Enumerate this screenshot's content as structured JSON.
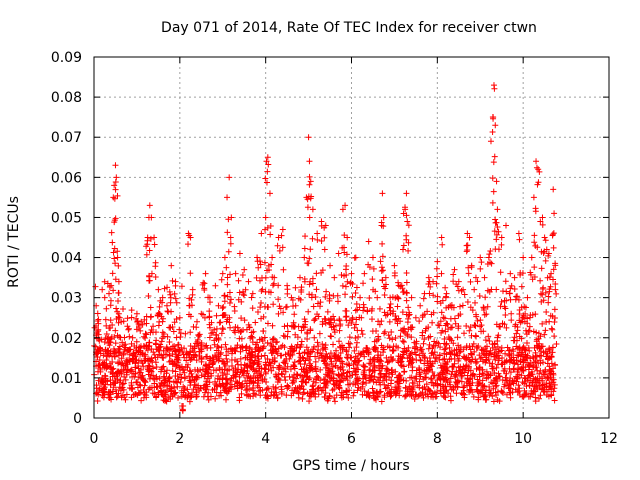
{
  "chart_data": {
    "type": "scatter",
    "title": "Day 071 of 2014, Rate Of TEC Index for receiver ctwn",
    "xlabel": "GPS time / hours",
    "ylabel": "ROTI / TECUs",
    "xlim": [
      0,
      12
    ],
    "ylim": [
      0,
      0.09
    ],
    "x_ticks": [
      0,
      2,
      4,
      6,
      8,
      10,
      12
    ],
    "x_tick_labels": [
      "0",
      "2",
      "4",
      "6",
      "8",
      "10",
      "12"
    ],
    "y_ticks": [
      0,
      0.01,
      0.02,
      0.03,
      0.04,
      0.05,
      0.06,
      0.07,
      0.08,
      0.09
    ],
    "y_tick_labels": [
      "0",
      "0.01",
      "0.02",
      "0.03",
      "0.04",
      "0.05",
      "0.06",
      "0.07",
      "0.08",
      "0.09"
    ],
    "grid": true,
    "marker": "+",
    "series_color": "#ff0000",
    "series": [
      {
        "name": "ROTI",
        "description_range": "dense scatter from 0 to ~10.75 h, baseline 0.005-0.02, spikes up to 0.083",
        "points": [
          [
            0.05,
            0.028
          ],
          [
            0.1,
            0.022
          ],
          [
            0.15,
            0.012
          ],
          [
            0.2,
            0.009
          ],
          [
            0.25,
            0.03
          ],
          [
            0.3,
            0.016
          ],
          [
            0.35,
            0.031
          ],
          [
            0.4,
            0.033
          ],
          [
            0.45,
            0.055
          ],
          [
            0.47,
            0.058
          ],
          [
            0.5,
            0.063
          ],
          [
            0.52,
            0.06
          ],
          [
            0.55,
            0.04
          ],
          [
            0.58,
            0.034
          ],
          [
            0.6,
            0.025
          ],
          [
            0.7,
            0.018
          ],
          [
            0.8,
            0.022
          ],
          [
            0.9,
            0.02
          ],
          [
            1.0,
            0.026
          ],
          [
            1.1,
            0.024
          ],
          [
            1.2,
            0.021
          ],
          [
            1.25,
            0.045
          ],
          [
            1.28,
            0.05
          ],
          [
            1.3,
            0.053
          ],
          [
            1.35,
            0.036
          ],
          [
            1.4,
            0.045
          ],
          [
            1.5,
            0.032
          ],
          [
            1.6,
            0.03
          ],
          [
            1.7,
            0.028
          ],
          [
            1.8,
            0.038
          ],
          [
            1.9,
            0.034
          ],
          [
            2.0,
            0.025
          ],
          [
            2.05,
            0.003
          ],
          [
            2.1,
            0.012
          ],
          [
            2.2,
            0.046
          ],
          [
            2.25,
            0.045
          ],
          [
            2.3,
            0.032
          ],
          [
            2.4,
            0.024
          ],
          [
            2.5,
            0.026
          ],
          [
            2.6,
            0.036
          ],
          [
            2.7,
            0.03
          ],
          [
            2.8,
            0.022
          ],
          [
            2.9,
            0.028
          ],
          [
            3.0,
            0.036
          ],
          [
            3.05,
            0.04
          ],
          [
            3.1,
            0.055
          ],
          [
            3.15,
            0.06
          ],
          [
            3.2,
            0.05
          ],
          [
            3.3,
            0.036
          ],
          [
            3.4,
            0.041
          ],
          [
            3.5,
            0.037
          ],
          [
            3.6,
            0.034
          ],
          [
            3.7,
            0.031
          ],
          [
            3.8,
            0.04
          ],
          [
            3.9,
            0.046
          ],
          [
            4.0,
            0.05
          ],
          [
            4.02,
            0.064
          ],
          [
            4.05,
            0.065
          ],
          [
            4.1,
            0.056
          ],
          [
            4.15,
            0.04
          ],
          [
            4.2,
            0.035
          ],
          [
            4.3,
            0.045
          ],
          [
            4.4,
            0.047
          ],
          [
            4.5,
            0.033
          ],
          [
            4.6,
            0.03
          ],
          [
            4.7,
            0.028
          ],
          [
            4.8,
            0.035
          ],
          [
            4.9,
            0.04
          ],
          [
            4.95,
            0.055
          ],
          [
            5.0,
            0.07
          ],
          [
            5.02,
            0.064
          ],
          [
            5.05,
            0.059
          ],
          [
            5.1,
            0.052
          ],
          [
            5.2,
            0.046
          ],
          [
            5.3,
            0.049
          ],
          [
            5.4,
            0.048
          ],
          [
            5.5,
            0.038
          ],
          [
            5.6,
            0.035
          ],
          [
            5.7,
            0.041
          ],
          [
            5.8,
            0.052
          ],
          [
            5.85,
            0.053
          ],
          [
            5.9,
            0.045
          ],
          [
            6.0,
            0.036
          ],
          [
            6.1,
            0.04
          ],
          [
            6.2,
            0.03
          ],
          [
            6.3,
            0.036
          ],
          [
            6.4,
            0.044
          ],
          [
            6.5,
            0.04
          ],
          [
            6.6,
            0.03
          ],
          [
            6.7,
            0.048
          ],
          [
            6.72,
            0.056
          ],
          [
            6.75,
            0.05
          ],
          [
            6.8,
            0.035
          ],
          [
            6.9,
            0.03
          ],
          [
            7.0,
            0.038
          ],
          [
            7.1,
            0.033
          ],
          [
            7.2,
            0.042
          ],
          [
            7.25,
            0.052
          ],
          [
            7.28,
            0.056
          ],
          [
            7.3,
            0.049
          ],
          [
            7.4,
            0.03
          ],
          [
            7.5,
            0.025
          ],
          [
            7.6,
            0.028
          ],
          [
            7.7,
            0.031
          ],
          [
            7.8,
            0.035
          ],
          [
            7.9,
            0.034
          ],
          [
            8.0,
            0.039
          ],
          [
            8.1,
            0.045
          ],
          [
            8.2,
            0.03
          ],
          [
            8.3,
            0.028
          ],
          [
            8.4,
            0.037
          ],
          [
            8.5,
            0.034
          ],
          [
            8.6,
            0.032
          ],
          [
            8.7,
            0.046
          ],
          [
            8.75,
            0.045
          ],
          [
            8.8,
            0.038
          ],
          [
            8.9,
            0.035
          ],
          [
            9.0,
            0.04
          ],
          [
            9.1,
            0.035
          ],
          [
            9.2,
            0.04
          ],
          [
            9.25,
            0.069
          ],
          [
            9.3,
            0.075
          ],
          [
            9.32,
            0.083
          ],
          [
            9.35,
            0.073
          ],
          [
            9.38,
            0.059
          ],
          [
            9.4,
            0.052
          ],
          [
            9.5,
            0.045
          ],
          [
            9.6,
            0.048
          ],
          [
            9.7,
            0.036
          ],
          [
            9.8,
            0.035
          ],
          [
            9.9,
            0.046
          ],
          [
            10.0,
            0.04
          ],
          [
            10.1,
            0.03
          ],
          [
            10.2,
            0.04
          ],
          [
            10.25,
            0.055
          ],
          [
            10.3,
            0.064
          ],
          [
            10.35,
            0.062
          ],
          [
            10.4,
            0.049
          ],
          [
            10.45,
            0.05
          ],
          [
            10.5,
            0.045
          ],
          [
            10.55,
            0.042
          ],
          [
            10.6,
            0.041
          ],
          [
            10.65,
            0.036
          ],
          [
            10.7,
            0.057
          ],
          [
            10.72,
            0.051
          ],
          [
            10.75,
            0.032
          ]
        ]
      }
    ]
  }
}
